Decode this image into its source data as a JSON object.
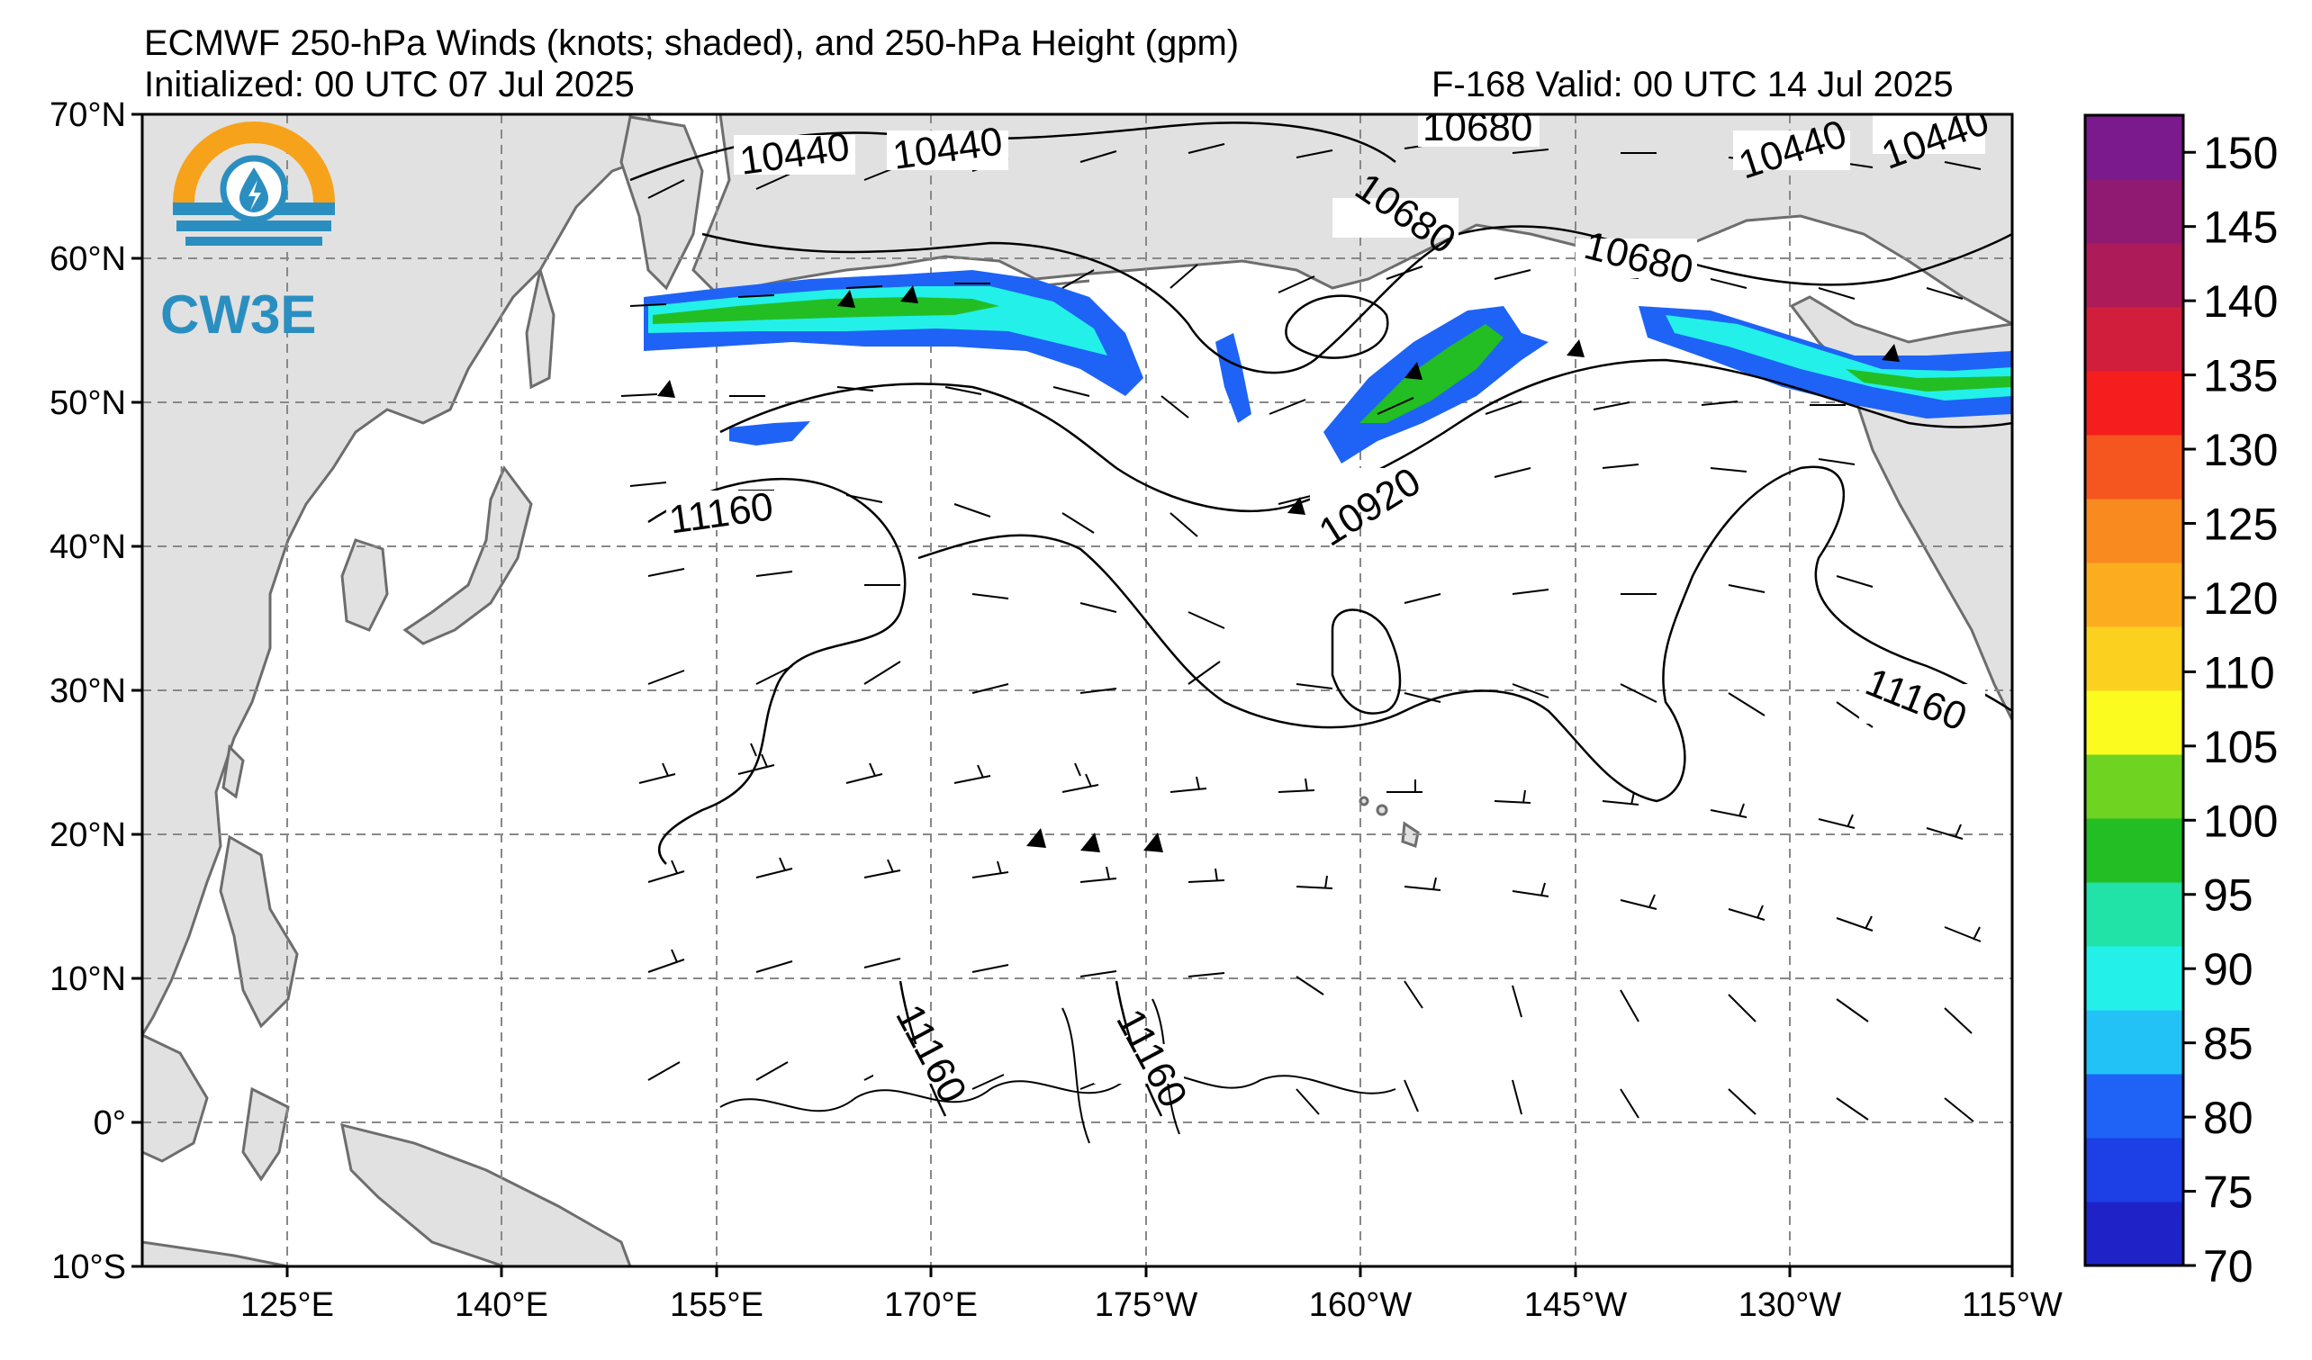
{
  "title": {
    "line1": "ECMWF 250-hPa Winds (knots; shaded), and 250-hPa Height (gpm)",
    "line2_left": "Initialized: 00 UTC 07 Jul 2025",
    "line2_right": "F-168  Valid: 00 UTC 14 Jul 2025"
  },
  "logo": {
    "text": "CW3E",
    "colors": {
      "orange": "#f7a21b",
      "blue": "#2a8fc0"
    }
  },
  "axes": {
    "lat_labels": [
      "70°N",
      "60°N",
      "50°N",
      "40°N",
      "30°N",
      "20°N",
      "10°N",
      "0°",
      "10°S"
    ],
    "lon_labels": [
      "125°E",
      "140°E",
      "155°E",
      "170°E",
      "175°W",
      "160°W",
      "145°W",
      "130°W",
      "115°W"
    ],
    "lat_range": [
      -10,
      70
    ],
    "lon_range_east": [
      110,
      245
    ],
    "gridlines": true
  },
  "colorbar": {
    "ticks": [
      "70",
      "75",
      "80",
      "85",
      "90",
      "95",
      "100",
      "105",
      "110",
      "120",
      "125",
      "130",
      "135",
      "140",
      "145",
      "150"
    ],
    "colors": [
      "#1f23c7",
      "#1d3fe6",
      "#1e63f5",
      "#22c2f7",
      "#23f0e8",
      "#21e3a8",
      "#22be23",
      "#6fd322",
      "#fbfb1f",
      "#fbd01f",
      "#fbad1f",
      "#f98a20",
      "#f5561f",
      "#f51d1d",
      "#d21e3d",
      "#ad1c59",
      "#901a72",
      "#7a1a8c"
    ]
  },
  "contour_labels": [
    "10440",
    "10440",
    "10680",
    "10440",
    "10440",
    "10680",
    "10680",
    "10920",
    "11160",
    "11160",
    "11160",
    "11160"
  ],
  "colors": {
    "land": "#e1e1e1",
    "coast": "#6d6d6d",
    "grid": "#888888"
  }
}
